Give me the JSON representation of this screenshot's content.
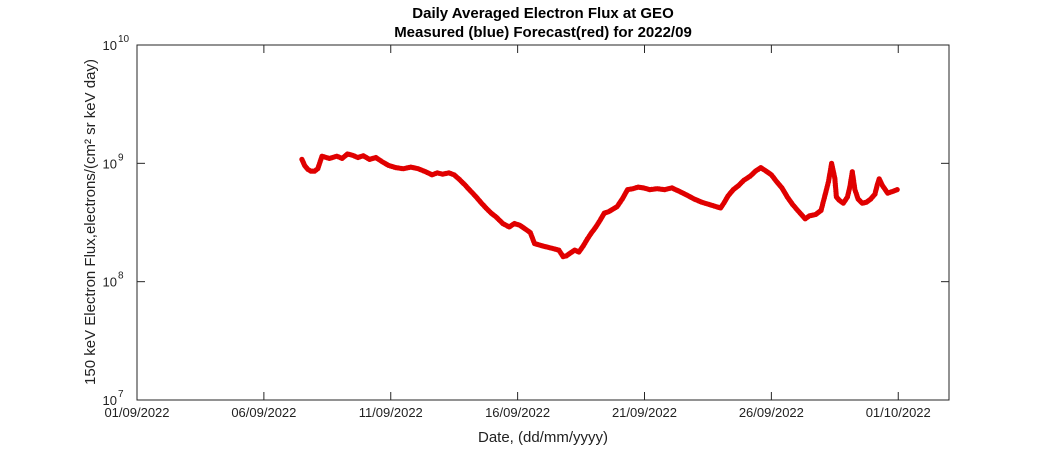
{
  "chart_data": {
    "type": "scatter",
    "title": "Daily Averaged Electron Flux at GEO",
    "subtitle": "Measured (blue) Forecast(red) for 2022/09",
    "xlabel": "Date, (dd/mm/yyyy)",
    "ylabel": "150 keV Electron Flux,electrons/(cm² sr keV day)",
    "y_scale": "log",
    "ylim": [
      10000000.0,
      10000000000.0
    ],
    "y_ticks": [
      {
        "value": 10000000.0,
        "base": "10",
        "exp": "7"
      },
      {
        "value": 100000000.0,
        "base": "10",
        "exp": "8"
      },
      {
        "value": 1000000000.0,
        "base": "10",
        "exp": "9"
      },
      {
        "value": 10000000000.0,
        "base": "10",
        "exp": "10"
      }
    ],
    "xlim": [
      "2022-09-01",
      "2022-10-03"
    ],
    "x_ticks": [
      {
        "date": "2022-09-01",
        "label": "01/09/2022"
      },
      {
        "date": "2022-09-06",
        "label": "06/09/2022"
      },
      {
        "date": "2022-09-11",
        "label": "11/09/2022"
      },
      {
        "date": "2022-09-16",
        "label": "16/09/2022"
      },
      {
        "date": "2022-09-21",
        "label": "21/09/2022"
      },
      {
        "date": "2022-09-26",
        "label": "26/09/2022"
      },
      {
        "date": "2022-10-01",
        "label": "01/10/2022"
      }
    ],
    "grid": false,
    "series": [
      {
        "color": "#e00000",
        "x": [
          "2022-09-07 12:00",
          "2022-09-07 14:30",
          "2022-09-07 17:30",
          "2022-09-07 20:30",
          "2022-09-08 00:00",
          "2022-09-08 03:00",
          "2022-09-08 07:00",
          "2022-09-08 14:00",
          "2022-09-08 21:00",
          "2022-09-09 02:00",
          "2022-09-09 07:00",
          "2022-09-09 12:00",
          "2022-09-09 17:00",
          "2022-09-09 22:00",
          "2022-09-10 04:00",
          "2022-09-10 10:00",
          "2022-09-10 16:00",
          "2022-09-10 22:00",
          "2022-09-11 05:00",
          "2022-09-11 12:00",
          "2022-09-11 19:00",
          "2022-09-12 02:00",
          "2022-09-12 09:00",
          "2022-09-12 15:00",
          "2022-09-12 20:00",
          "2022-09-13 01:00",
          "2022-09-13 07:00",
          "2022-09-13 12:00",
          "2022-09-13 17:00",
          "2022-09-13 22:00",
          "2022-09-14 03:00",
          "2022-09-14 08:00",
          "2022-09-14 13:00",
          "2022-09-14 18:00",
          "2022-09-14 23:00",
          "2022-09-15 04:00",
          "2022-09-15 10:00",
          "2022-09-15 16:00",
          "2022-09-15 21:00",
          "2022-09-16 02:00",
          "2022-09-16 07:00",
          "2022-09-16 12:00",
          "2022-09-16 16:00",
          "2022-09-16 20:00",
          "2022-09-17 00:00",
          "2022-09-17 05:00",
          "2022-09-17 10:00",
          "2022-09-17 15:00",
          "2022-09-17 19:00",
          "2022-09-17 22:00",
          "2022-09-18 02:00",
          "2022-09-18 06:00",
          "2022-09-18 10:00",
          "2022-09-18 14:00",
          "2022-09-18 18:00",
          "2022-09-18 22:00",
          "2022-09-19 02:00",
          "2022-09-19 06:00",
          "2022-09-19 10:00",
          "2022-09-19 14:00",
          "2022-09-19 18:00",
          "2022-09-19 22:00",
          "2022-09-20 03:00",
          "2022-09-20 08:00",
          "2022-09-20 13:00",
          "2022-09-20 18:00",
          "2022-09-20 23:00",
          "2022-09-21 05:00",
          "2022-09-21 12:00",
          "2022-09-21 19:00",
          "2022-09-22 02:00",
          "2022-09-22 09:00",
          "2022-09-22 16:00",
          "2022-09-22 23:00",
          "2022-09-23 06:00",
          "2022-09-23 13:00",
          "2022-09-23 20:00",
          "2022-09-24 00:00",
          "2022-09-24 03:00",
          "2022-09-24 07:00",
          "2022-09-24 12:00",
          "2022-09-24 17:00",
          "2022-09-24 22:00",
          "2022-09-25 04:00",
          "2022-09-25 09:00",
          "2022-09-25 14:00",
          "2022-09-25 19:00",
          "2022-09-26 00:00",
          "2022-09-26 05:00",
          "2022-09-26 10:00",
          "2022-09-26 15:00",
          "2022-09-26 20:00",
          "2022-09-27 02:00",
          "2022-09-27 08:00",
          "2022-09-27 12:00",
          "2022-09-27 18:00",
          "2022-09-27 23:00",
          "2022-09-28 03:00",
          "2022-09-28 06:00",
          "2022-09-28 09:00",
          "2022-09-28 12:00",
          "2022-09-28 13:30",
          "2022-09-28 16:00",
          "2022-09-28 20:00",
          "2022-09-29 00:00",
          "2022-09-29 02:30",
          "2022-09-29 04:30",
          "2022-09-29 07:00",
          "2022-09-29 10:00",
          "2022-09-29 14:00",
          "2022-09-29 18:00",
          "2022-09-29 22:00",
          "2022-09-30 02:00",
          "2022-09-30 04:00",
          "2022-09-30 06:00",
          "2022-09-30 09:00",
          "2022-09-30 14:00",
          "2022-09-30 19:00",
          "2022-09-30 23:00"
        ],
        "y": [
          1080000000.0,
          960000000.0,
          890000000.0,
          860000000.0,
          860000000.0,
          900000000.0,
          1150000000.0,
          1100000000.0,
          1150000000.0,
          1100000000.0,
          1200000000.0,
          1170000000.0,
          1120000000.0,
          1160000000.0,
          1080000000.0,
          1120000000.0,
          1030000000.0,
          960000000.0,
          920000000.0,
          900000000.0,
          930000000.0,
          900000000.0,
          850000000.0,
          800000000.0,
          830000000.0,
          810000000.0,
          830000000.0,
          800000000.0,
          730000000.0,
          660000000.0,
          590000000.0,
          530000000.0,
          470000000.0,
          420000000.0,
          380000000.0,
          350000000.0,
          310000000.0,
          290000000.0,
          310000000.0,
          300000000.0,
          280000000.0,
          260000000.0,
          210000000.0,
          205000000.0,
          200000000.0,
          195000000.0,
          190000000.0,
          185000000.0,
          163000000.0,
          165000000.0,
          175000000.0,
          185000000.0,
          178000000.0,
          200000000.0,
          230000000.0,
          260000000.0,
          290000000.0,
          330000000.0,
          380000000.0,
          390000000.0,
          410000000.0,
          430000000.0,
          500000000.0,
          600000000.0,
          610000000.0,
          630000000.0,
          620000000.0,
          600000000.0,
          610000000.0,
          600000000.0,
          620000000.0,
          580000000.0,
          540000000.0,
          500000000.0,
          470000000.0,
          450000000.0,
          430000000.0,
          420000000.0,
          460000000.0,
          530000000.0,
          600000000.0,
          650000000.0,
          720000000.0,
          780000000.0,
          860000000.0,
          920000000.0,
          860000000.0,
          800000000.0,
          700000000.0,
          620000000.0,
          520000000.0,
          450000000.0,
          390000000.0,
          340000000.0,
          360000000.0,
          370000000.0,
          400000000.0,
          550000000.0,
          700000000.0,
          1000000000.0,
          750000000.0,
          520000000.0,
          490000000.0,
          460000000.0,
          520000000.0,
          650000000.0,
          850000000.0,
          600000000.0,
          500000000.0,
          460000000.0,
          470000000.0,
          500000000.0,
          550000000.0,
          650000000.0,
          740000000.0,
          650000000.0,
          560000000.0,
          580000000.0,
          600000000.0
        ]
      }
    ]
  }
}
